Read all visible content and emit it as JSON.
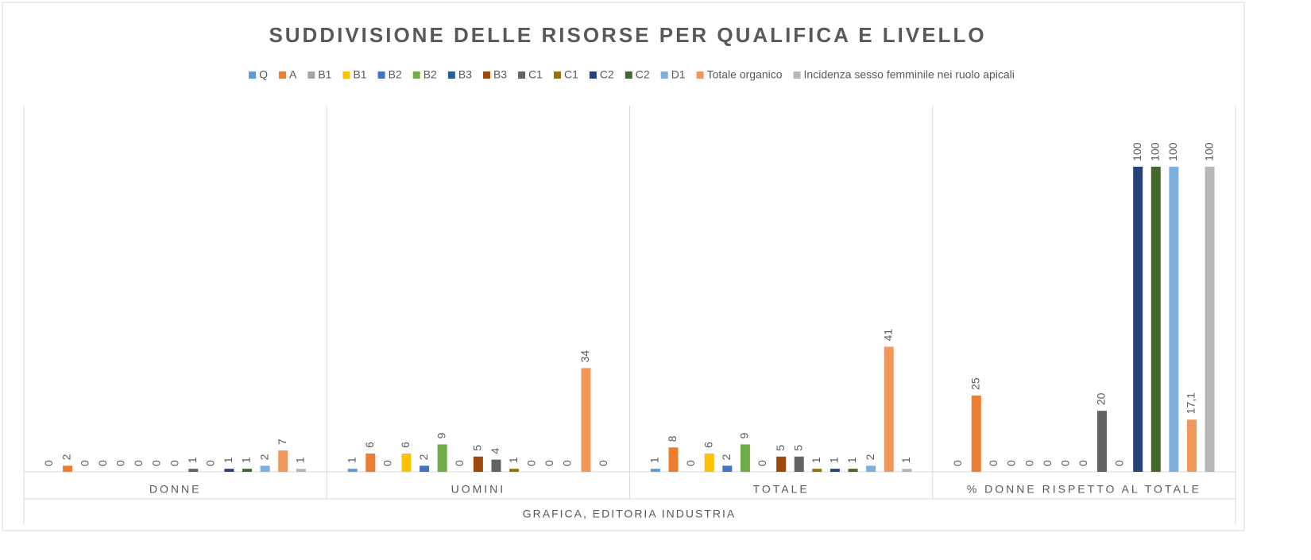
{
  "chart_data": {
    "type": "bar",
    "title": "SUDDIVISIONE DELLE RISORSE PER QUALIFICA E LIVELLO",
    "x_label": "GRAFICA, EDITORIA INDUSTRIA",
    "categories": [
      "DONNE",
      "UOMINI",
      "TOTALE",
      "% DONNE RISPETTO AL TOTALE"
    ],
    "ylim": [
      0,
      120
    ],
    "legend": "top",
    "series": [
      {
        "name": "Q",
        "color": "#5B9BD5",
        "values": [
          0,
          1,
          1,
          0
        ]
      },
      {
        "name": "A",
        "color": "#ED7D31",
        "values": [
          2,
          6,
          8,
          25
        ]
      },
      {
        "name": "B1",
        "color": "#A5A5A5",
        "values": [
          0,
          0,
          0,
          0
        ]
      },
      {
        "name": "B1",
        "color": "#FFC000",
        "values": [
          0,
          6,
          6,
          0
        ]
      },
      {
        "name": "B2",
        "color": "#4472C4",
        "values": [
          0,
          2,
          2,
          0
        ]
      },
      {
        "name": "B2",
        "color": "#70AD47",
        "values": [
          0,
          9,
          9,
          0
        ]
      },
      {
        "name": "B3",
        "color": "#255E91",
        "values": [
          0,
          0,
          0,
          0
        ]
      },
      {
        "name": "B3",
        "color": "#9E480E",
        "values": [
          0,
          5,
          5,
          0
        ]
      },
      {
        "name": "C1",
        "color": "#636363",
        "values": [
          1,
          4,
          5,
          20
        ]
      },
      {
        "name": "C1",
        "color": "#997300",
        "values": [
          0,
          1,
          1,
          0
        ]
      },
      {
        "name": "C2",
        "color": "#264478",
        "values": [
          1,
          0,
          1,
          100
        ]
      },
      {
        "name": "C2",
        "color": "#43682B",
        "values": [
          1,
          0,
          1,
          100
        ]
      },
      {
        "name": "D1",
        "color": "#7CAFDD",
        "values": [
          2,
          0,
          2,
          100
        ]
      },
      {
        "name": "Totale organico",
        "color": "#F1975A",
        "values": [
          7,
          34,
          41,
          17.1
        ],
        "value_labels": [
          "7",
          "34",
          "41",
          "17,1"
        ]
      },
      {
        "name": "Incidenza sesso femminile nei ruolo apicali",
        "color": "#B7B7B7",
        "values": [
          1,
          0,
          1,
          100
        ]
      }
    ]
  }
}
